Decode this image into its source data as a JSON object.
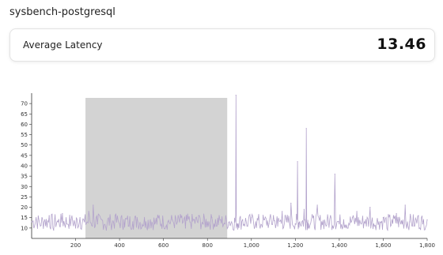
{
  "header": {
    "title": "sysbench-postgresql"
  },
  "stat": {
    "label": "Average Latency",
    "value": "13.46"
  },
  "chart_data": {
    "type": "line",
    "title": "",
    "xlabel": "",
    "ylabel": "",
    "xlim": [
      0,
      1800
    ],
    "ylim": [
      5,
      75
    ],
    "x_ticks": [
      200,
      400,
      600,
      800,
      1000,
      1200,
      1400,
      1600,
      1800
    ],
    "x_tick_labels": [
      "200",
      "400",
      "600",
      "800",
      "1,000",
      "1,200",
      "1,400",
      "1,600",
      "1,800"
    ],
    "y_ticks": [
      10,
      15,
      20,
      25,
      30,
      35,
      40,
      45,
      50,
      55,
      60,
      65,
      70
    ],
    "y_tick_labels": [
      "10",
      "15",
      "20",
      "25",
      "30",
      "35",
      "40",
      "45",
      "50",
      "55",
      "60",
      "65",
      "70"
    ],
    "highlight_range": [
      245,
      890
    ],
    "line_color": "#b3a3cc",
    "highlight_color": "#d3d3d3",
    "grid": false,
    "series": [
      {
        "x": [
          0,
          20,
          40,
          60,
          80,
          100,
          120,
          140,
          160,
          180,
          200,
          220,
          240,
          260,
          280,
          300,
          320,
          340,
          360,
          380,
          400,
          420,
          440,
          460,
          480,
          500,
          520,
          540,
          560,
          580,
          600,
          620,
          640,
          660,
          680,
          700,
          720,
          740,
          760,
          780,
          800,
          820,
          840,
          860,
          880,
          900,
          920,
          930,
          940,
          960,
          980,
          1000,
          1020,
          1040,
          1060,
          1080,
          1100,
          1120,
          1140,
          1160,
          1180,
          1200,
          1210,
          1220,
          1240,
          1250,
          1260,
          1280,
          1300,
          1320,
          1340,
          1360,
          1380,
          1400,
          1420,
          1440,
          1460,
          1480,
          1500,
          1520,
          1540,
          1560,
          1580,
          1600,
          1620,
          1640,
          1660,
          1680,
          1700,
          1720,
          1740,
          1760,
          1780,
          1800
        ],
        "y": [
          13,
          15,
          11,
          14,
          16,
          9,
          13,
          17,
          12,
          14,
          10,
          15,
          13,
          18,
          21,
          12,
          14,
          9,
          13,
          16,
          12,
          14,
          11,
          13,
          15,
          10,
          13,
          14,
          12,
          16,
          11,
          13,
          14,
          12,
          15,
          10,
          13,
          14,
          16,
          12,
          13,
          15,
          11,
          14,
          12,
          13,
          9,
          74,
          12,
          14,
          11,
          15,
          13,
          10,
          14,
          12,
          16,
          11,
          18,
          13,
          22,
          12,
          42,
          13,
          19,
          58,
          12,
          15,
          21,
          13,
          11,
          16,
          36,
          12,
          14,
          10,
          15,
          18,
          12,
          14,
          20,
          11,
          13,
          15,
          9,
          14,
          17,
          12,
          21,
          13,
          11,
          16,
          12,
          14
        ]
      }
    ]
  }
}
